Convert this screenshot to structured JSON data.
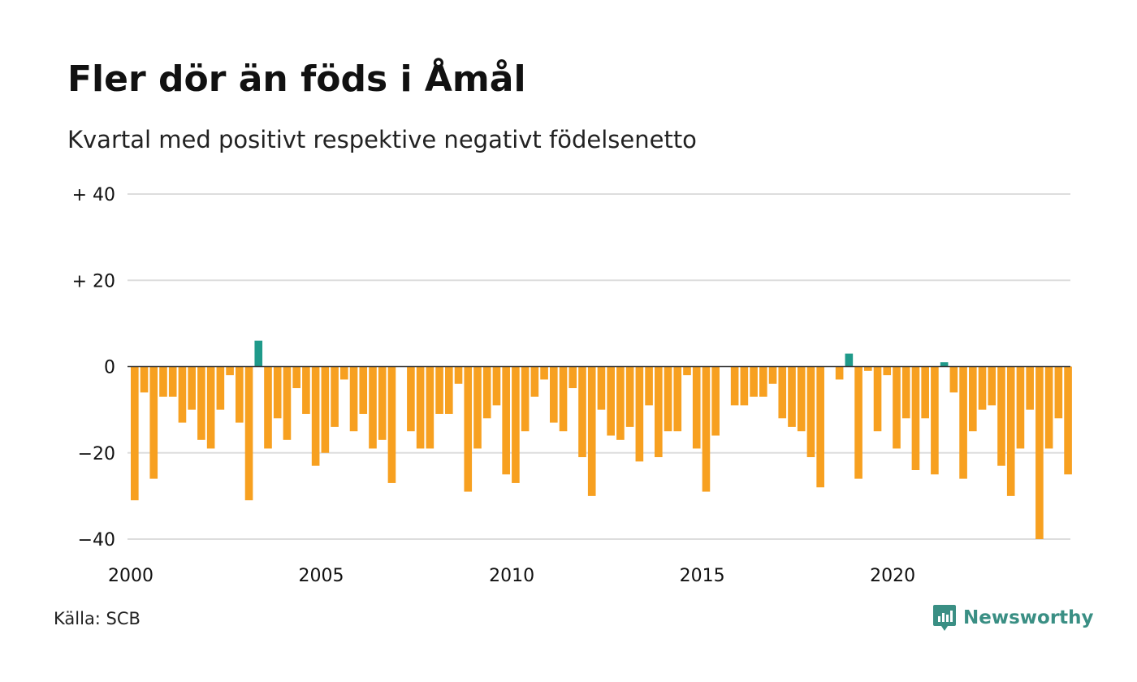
{
  "title": "Fler dör än föds i Åmål",
  "subtitle": "Kvartal med positivt respektive negativt födelsenetto",
  "source": "Källa: SCB",
  "brand": {
    "name": "Newsworthy",
    "icon": "newsworthy-logo-icon"
  },
  "colors": {
    "negative": "#f7a020",
    "positive": "#1f9a8a",
    "grid": "#dddddd",
    "zero": "#333333",
    "brand": "#3a8f84"
  },
  "chart_data": {
    "type": "bar",
    "xlabel": "",
    "ylabel": "",
    "ylim": [
      -40,
      40
    ],
    "grid": true,
    "legend": "none",
    "y_ticks": [
      {
        "value": 40,
        "label": "+ 40"
      },
      {
        "value": 20,
        "label": "+ 20"
      },
      {
        "value": 0,
        "label": "0"
      },
      {
        "value": -20,
        "label": "−20"
      },
      {
        "value": -40,
        "label": "−40"
      }
    ],
    "x_ticks": [
      {
        "year": 2000,
        "label": "2000"
      },
      {
        "year": 2005,
        "label": "2005"
      },
      {
        "year": 2010,
        "label": "2010"
      },
      {
        "year": 2015,
        "label": "2015"
      },
      {
        "year": 2020,
        "label": "2020"
      }
    ],
    "first_period": "2000 Q1",
    "values": [
      -31,
      -6,
      -26,
      -7,
      -7,
      -13,
      -10,
      -17,
      -19,
      -10,
      -2,
      -13,
      -31,
      6,
      -19,
      -12,
      -17,
      -5,
      -11,
      -23,
      -20,
      -14,
      -3,
      -15,
      -11,
      -19,
      -17,
      -27,
      0,
      -15,
      -19,
      -19,
      -11,
      -11,
      -4,
      -29,
      -19,
      -12,
      -9,
      -25,
      -27,
      -15,
      -7,
      -3,
      -13,
      -15,
      -5,
      -21,
      -30,
      -10,
      -16,
      -17,
      -14,
      -22,
      -9,
      -21,
      -15,
      -15,
      -2,
      -19,
      -29,
      -16,
      0,
      -9,
      -9,
      -7,
      -7,
      -4,
      -12,
      -14,
      -15,
      -21,
      -28,
      0,
      -3,
      3,
      -26,
      -1,
      -15,
      -2,
      -19,
      -12,
      -24,
      -12,
      -25,
      1,
      -6,
      -26,
      -15,
      -10,
      -9,
      -23,
      -30,
      -19,
      -10,
      -40,
      -19,
      -12,
      -25
    ]
  }
}
